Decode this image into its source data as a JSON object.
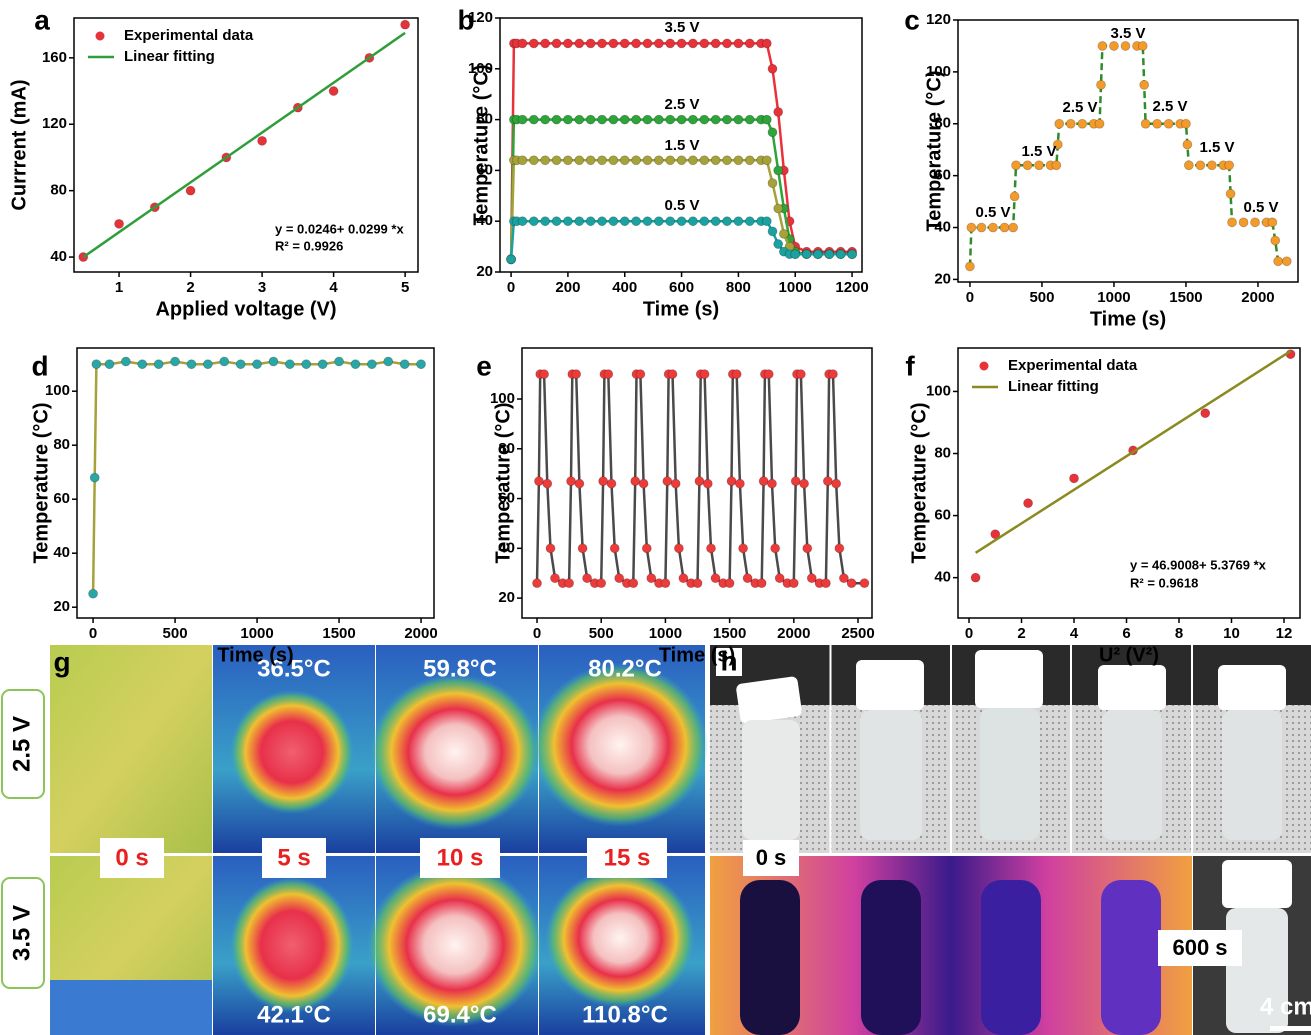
{
  "chart_data": [
    {
      "type": "scatter",
      "panel_label": "a",
      "xlabel": "Applied voltage (V)",
      "ylabel": "Currrent (mA)",
      "xlim": [
        0.37,
        5.18
      ],
      "ylim": [
        31,
        184
      ],
      "xticks": [
        1,
        2,
        3,
        4,
        5
      ],
      "yticks": [
        40,
        80,
        120,
        160
      ],
      "legend": "upper left",
      "series": [
        {
          "name": "Experimental data",
          "color": "#e8323a",
          "style": "markers",
          "x": [
            0.5,
            1,
            1.5,
            2,
            2.5,
            3,
            3.5,
            4,
            4.5,
            5
          ],
          "values": [
            40,
            60,
            70,
            80,
            100,
            110,
            130,
            140,
            160,
            180
          ]
        },
        {
          "name": "Linear fitting",
          "color": "#2e9e3a",
          "style": "line",
          "x": [
            0.5,
            5
          ],
          "values": [
            40,
            175
          ]
        }
      ],
      "annotations": [
        "y = 0.0246+ 0.0299 *x",
        "R² = 0.9926"
      ]
    },
    {
      "type": "line",
      "panel_label": "b",
      "xlabel": "Time (s)",
      "ylabel": "Temperature (°C)",
      "xlim": [
        -39,
        1235
      ],
      "ylim": [
        20,
        120
      ],
      "xticks": [
        0,
        200,
        400,
        600,
        800,
        1000,
        1200
      ],
      "yticks": [
        20,
        40,
        60,
        80,
        100,
        120
      ],
      "x": [
        0,
        10,
        20,
        40,
        80,
        120,
        160,
        200,
        240,
        280,
        320,
        360,
        400,
        440,
        480,
        520,
        560,
        600,
        640,
        680,
        720,
        760,
        800,
        840,
        880,
        900,
        920,
        940,
        960,
        980,
        1000,
        1040,
        1080,
        1120,
        1160,
        1200
      ],
      "series": [
        {
          "color": "#e8323a",
          "style": "line+markers",
          "values": [
            25,
            110,
            110,
            110,
            110,
            110,
            110,
            110,
            110,
            110,
            110,
            110,
            110,
            110,
            110,
            110,
            110,
            110,
            110,
            110,
            110,
            110,
            110,
            110,
            110,
            110,
            100,
            83,
            60,
            40,
            30,
            28,
            28,
            28,
            28,
            28
          ]
        },
        {
          "color": "#2ea43a",
          "style": "line+markers",
          "values": [
            25,
            80,
            80,
            80,
            80,
            80,
            80,
            80,
            80,
            80,
            80,
            80,
            80,
            80,
            80,
            80,
            80,
            80,
            80,
            80,
            80,
            80,
            80,
            80,
            80,
            80,
            75,
            60,
            45,
            33,
            28,
            27,
            27,
            27,
            27,
            27
          ]
        },
        {
          "color": "#a6a23a",
          "style": "line+markers",
          "values": [
            25,
            64,
            64,
            64,
            64,
            64,
            64,
            64,
            64,
            64,
            64,
            64,
            64,
            64,
            64,
            64,
            64,
            64,
            64,
            64,
            64,
            64,
            64,
            64,
            64,
            64,
            55,
            45,
            35,
            30,
            27,
            27,
            27,
            27,
            27,
            27
          ]
        },
        {
          "color": "#1aa1a0",
          "style": "line+markers",
          "values": [
            25,
            40,
            40,
            40,
            40,
            40,
            40,
            40,
            40,
            40,
            40,
            40,
            40,
            40,
            40,
            40,
            40,
            40,
            40,
            40,
            40,
            40,
            40,
            40,
            40,
            40,
            36,
            31,
            28,
            27,
            27,
            27,
            27,
            27,
            27,
            27
          ]
        }
      ],
      "annotations": [
        "3.5 V",
        "2.5 V",
        "1.5 V",
        "0.5 V"
      ]
    },
    {
      "type": "line",
      "panel_label": "c",
      "xlabel": "Time (s)",
      "ylabel": "Temperature (°C)",
      "xlim": [
        -83,
        2278
      ],
      "ylim": [
        19,
        120
      ],
      "xticks": [
        0,
        500,
        1000,
        1500,
        2000
      ],
      "yticks": [
        20,
        40,
        60,
        80,
        100,
        120
      ],
      "x": [
        0,
        10,
        80,
        160,
        240,
        300,
        310,
        320,
        400,
        480,
        560,
        600,
        610,
        620,
        700,
        780,
        860,
        900,
        910,
        920,
        1000,
        1080,
        1160,
        1200,
        1210,
        1220,
        1300,
        1380,
        1460,
        1500,
        1510,
        1520,
        1600,
        1680,
        1760,
        1800,
        1810,
        1820,
        1900,
        1980,
        2060,
        2100,
        2120,
        2140,
        2200
      ],
      "series": [
        {
          "color": "#f39a2a",
          "line_color": "#2e8b2e",
          "dash": true,
          "style": "line+markers",
          "values": [
            25,
            40,
            40,
            40,
            40,
            40,
            52,
            64,
            64,
            64,
            64,
            64,
            72,
            80,
            80,
            80,
            80,
            80,
            95,
            110,
            110,
            110,
            110,
            110,
            95,
            80,
            80,
            80,
            80,
            80,
            72,
            64,
            64,
            64,
            64,
            64,
            53,
            42,
            42,
            42,
            42,
            42,
            35,
            27,
            27
          ]
        }
      ],
      "annotations": [
        "0.5 V",
        "1.5 V",
        "2.5 V",
        "3.5 V",
        "2.5 V",
        "1.5 V",
        "0.5 V"
      ]
    },
    {
      "type": "line",
      "panel_label": "d",
      "xlabel": "Time (s)",
      "ylabel": "Temperature (°C)",
      "xlim": [
        -98,
        2079
      ],
      "ylim": [
        16,
        116
      ],
      "xticks": [
        0,
        500,
        1000,
        1500,
        2000
      ],
      "yticks": [
        20,
        40,
        60,
        80,
        100
      ],
      "x": [
        0,
        10,
        20,
        100,
        200,
        300,
        400,
        500,
        600,
        700,
        800,
        900,
        1000,
        1100,
        1200,
        1300,
        1400,
        1500,
        1600,
        1700,
        1800,
        1900,
        2000
      ],
      "series": [
        {
          "color": "#2aa6a6",
          "line_color": "#a6a23a",
          "style": "line+markers",
          "values": [
            25,
            68,
            110,
            110,
            111,
            110,
            110,
            111,
            110,
            110,
            111,
            110,
            110,
            111,
            110,
            110,
            110,
            111,
            110,
            110,
            111,
            110,
            110
          ]
        }
      ]
    },
    {
      "type": "line",
      "panel_label": "e",
      "xlabel": "Time (s)",
      "ylabel": "Temperature (°C)",
      "xlim": [
        -117,
        2609
      ],
      "ylim": [
        12,
        120.5
      ],
      "xticks": [
        0,
        500,
        1000,
        1500,
        2000,
        2500
      ],
      "yticks": [
        20,
        40,
        60,
        80,
        100
      ],
      "x": [
        0,
        15,
        25,
        55,
        80,
        105,
        140,
        200,
        250,
        265,
        275,
        305,
        330,
        355,
        390,
        450,
        500,
        515,
        525,
        555,
        580,
        605,
        640,
        700,
        750,
        765,
        775,
        805,
        830,
        855,
        890,
        950,
        1000,
        1015,
        1025,
        1055,
        1080,
        1105,
        1140,
        1200,
        1250,
        1265,
        1275,
        1305,
        1330,
        1355,
        1390,
        1450,
        1500,
        1515,
        1525,
        1555,
        1580,
        1605,
        1640,
        1700,
        1750,
        1765,
        1775,
        1805,
        1830,
        1855,
        1890,
        1950,
        2000,
        2015,
        2025,
        2055,
        2080,
        2105,
        2140,
        2200,
        2250,
        2265,
        2275,
        2305,
        2330,
        2355,
        2390,
        2450,
        2550
      ],
      "series": [
        {
          "color": "#ec3b3b",
          "line_color": "#4a4a4a",
          "style": "line+markers",
          "values": [
            26,
            67,
            110,
            110,
            66,
            40,
            28,
            26,
            26,
            67,
            110,
            110,
            66,
            40,
            28,
            26,
            26,
            67,
            110,
            110,
            66,
            40,
            28,
            26,
            26,
            67,
            110,
            110,
            66,
            40,
            28,
            26,
            26,
            67,
            110,
            110,
            66,
            40,
            28,
            26,
            26,
            67,
            110,
            110,
            66,
            40,
            28,
            26,
            26,
            67,
            110,
            110,
            66,
            40,
            28,
            26,
            26,
            67,
            110,
            110,
            66,
            40,
            28,
            26,
            26,
            67,
            110,
            110,
            66,
            40,
            28,
            26,
            26,
            67,
            110,
            110,
            66,
            40,
            28,
            26,
            26
          ]
        }
      ]
    },
    {
      "type": "scatter",
      "panel_label": "f",
      "xlabel": "U² (V²)",
      "ylabel": "Temperature (°C)",
      "xlim": [
        -0.42,
        12.61
      ],
      "ylim": [
        27,
        114
      ],
      "xticks": [
        0,
        2,
        4,
        6,
        8,
        10,
        12
      ],
      "yticks": [
        40,
        60,
        80,
        100
      ],
      "legend": "upper left",
      "series": [
        {
          "name": "Experimental data",
          "color": "#e8323a",
          "style": "markers",
          "x": [
            0.25,
            1,
            2.25,
            4,
            6.25,
            9,
            12.25
          ],
          "values": [
            40,
            54,
            64,
            72,
            81,
            93,
            112
          ]
        },
        {
          "name": "Linear fitting",
          "color": "#8a8a20",
          "style": "line",
          "x": [
            0.25,
            12.25
          ],
          "values": [
            48,
            113
          ]
        }
      ],
      "annotations": [
        "y = 46.9008+ 5.3769 *x",
        "R² = 0.9618"
      ]
    }
  ],
  "images": {
    "g": {
      "label": "g",
      "rows": [
        "2.5 V",
        "3.5 V"
      ],
      "times": [
        "0 s",
        "5 s",
        "10 s",
        "15 s"
      ],
      "temperatures": [
        [
          "36.5°C",
          "59.8°C",
          "80.2°C"
        ],
        [
          "42.1°C",
          "69.4°C",
          "110.8°C"
        ]
      ]
    },
    "h": {
      "label": "h",
      "times": [
        "0 s",
        "600 s"
      ],
      "scale": "4 cm"
    }
  }
}
